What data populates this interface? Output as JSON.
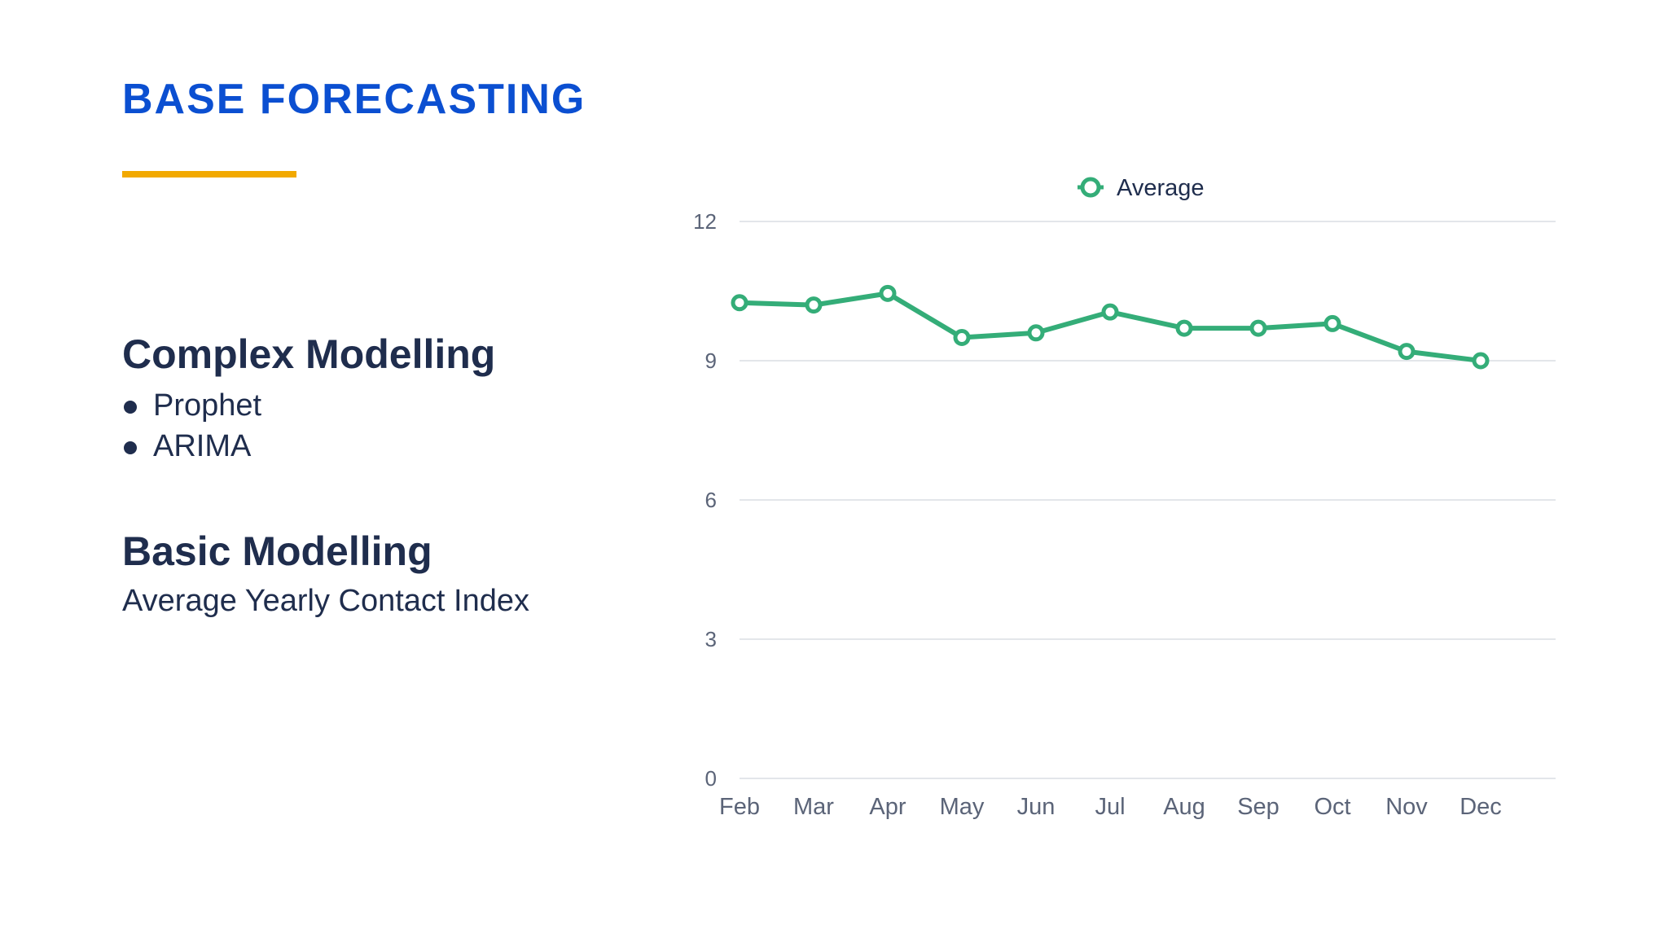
{
  "slide": {
    "title": "BASE FORECASTING"
  },
  "left_panel": {
    "complex": {
      "heading": "Complex Modelling",
      "items": [
        "Prophet",
        "ARIMA"
      ]
    },
    "basic": {
      "heading": "Basic Modelling",
      "subtitle": "Average Yearly Contact Index"
    }
  },
  "colors": {
    "title": "#0b4fd1",
    "accent": "#f2a900",
    "text": "#1f2d4d",
    "series": "#34ad78",
    "grid": "#e3e6ea",
    "tick": "#5b6478"
  },
  "chart_data": {
    "type": "line",
    "title": "",
    "xlabel": "",
    "ylabel": "",
    "categories": [
      "Feb",
      "Mar",
      "Apr",
      "May",
      "Jun",
      "Jul",
      "Aug",
      "Sep",
      "Oct",
      "Nov",
      "Dec"
    ],
    "series": [
      {
        "name": "Average",
        "values": [
          10.25,
          10.2,
          10.45,
          9.5,
          9.6,
          10.05,
          9.7,
          9.7,
          9.8,
          9.2,
          9.0
        ]
      }
    ],
    "ylim": [
      0,
      12
    ],
    "yticks": [
      0,
      3,
      6,
      9,
      12
    ],
    "grid": true,
    "legend": "top-center",
    "markers": "hollow-circle"
  }
}
